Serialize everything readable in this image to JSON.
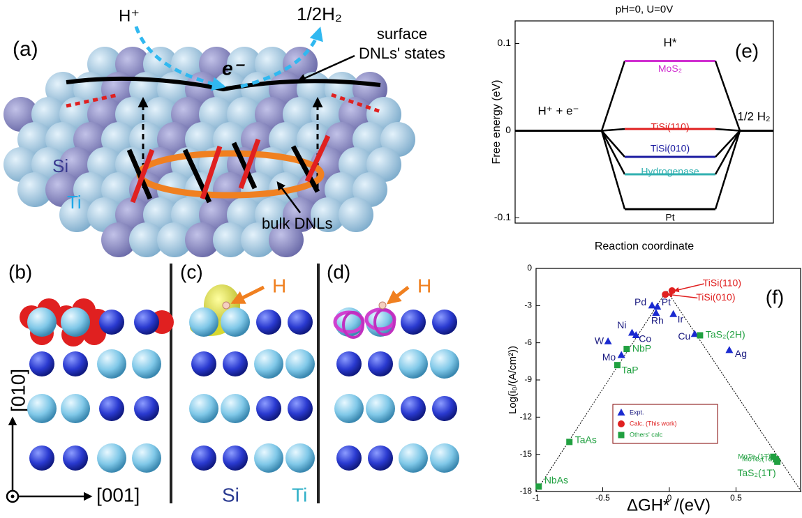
{
  "panel_a": {
    "label": "(a)",
    "h_plus": "H⁺",
    "half_h2": "1/2H₂",
    "electron": "e⁻",
    "surface_label": [
      "surface",
      "DNLs' states"
    ],
    "si": "Si",
    "ti": "Ti",
    "bulk_label": "bulk DNLs"
  },
  "panel_b": {
    "label": "(b)"
  },
  "panel_c": {
    "label": "(c)",
    "h": "H"
  },
  "panel_d": {
    "label": "(d)",
    "h": "H"
  },
  "axes_legend": {
    "y_dir": "[010]",
    "x_dir": "[001]",
    "si": "Si",
    "ti": "Ti"
  },
  "chart_data": [
    {
      "type": "energy_diagram",
      "label": "(e)",
      "title": "pH=0, U=0V",
      "ylabel": "Free energy (eV)",
      "xlabel": "Reaction coordinate",
      "ylim": [
        -0.106,
        0.126
      ],
      "yticks": [
        0.1,
        0,
        -0.1
      ],
      "stages": [
        "H⁺ + e⁻",
        "H*",
        "1/2 H₂"
      ],
      "series": [
        {
          "name": "MoS₂",
          "color": "#d030d0",
          "values": [
            0,
            0.08,
            0
          ]
        },
        {
          "name": "TiSi(110)",
          "color": "#e02020",
          "values": [
            0,
            0.002,
            0
          ]
        },
        {
          "name": "TiSi(010)",
          "color": "#1a1aa0",
          "values": [
            0,
            -0.03,
            0
          ]
        },
        {
          "name": "Hydrogenase",
          "color": "#30b0b0",
          "values": [
            0,
            -0.05,
            0
          ]
        },
        {
          "name": "Pt",
          "color": "#000000",
          "values": [
            0,
            -0.09,
            0
          ]
        }
      ]
    },
    {
      "type": "scatter",
      "label": "(f)",
      "xlabel": "ΔGH* /(eV)",
      "ylabel": "Log(i₀/(A/cm²))",
      "xlim": [
        -1,
        0.99
      ],
      "ylim": [
        -18,
        0
      ],
      "xticks": [
        -1,
        -0.5,
        0,
        0.5
      ],
      "yticks": [
        0,
        -3,
        -6,
        -9,
        -12,
        -15,
        -18
      ],
      "fit_line": {
        "x": [
          -1,
          -0.02,
          0.99
        ],
        "y": [
          -18,
          -1.8,
          -18
        ]
      },
      "series": [
        {
          "name": "Expt.",
          "color": "#1a2ad0",
          "marker": "triangle",
          "points": [
            {
              "label": "Pd",
              "x": -0.13,
              "y": -3.0
            },
            {
              "label": "Pt",
              "x": -0.09,
              "y": -3.1
            },
            {
              "label": "Rh",
              "x": -0.1,
              "y": -3.6
            },
            {
              "label": "Ir",
              "x": 0.03,
              "y": -3.7
            },
            {
              "label": "Ni",
              "x": -0.28,
              "y": -5.2
            },
            {
              "label": "Co",
              "x": -0.25,
              "y": -5.4
            },
            {
              "label": "W",
              "x": -0.46,
              "y": -5.9
            },
            {
              "label": "Mo",
              "x": -0.36,
              "y": -7.0
            },
            {
              "label": "Cu",
              "x": 0.19,
              "y": -5.3
            },
            {
              "label": "Ag",
              "x": 0.45,
              "y": -6.6
            }
          ]
        },
        {
          "name": "Calc. (This work)",
          "color": "#e02020",
          "marker": "circle",
          "points": [
            {
              "label": "TiSi(110)",
              "x": 0.02,
              "y": -1.8
            },
            {
              "label": "TiSi(010)",
              "x": -0.03,
              "y": -2.1
            }
          ]
        },
        {
          "name": "Others' calc",
          "color": "#20a040",
          "marker": "square",
          "points": [
            {
              "label": "TaS₂(2H)",
              "x": 0.23,
              "y": -5.4
            },
            {
              "label": "NbP",
              "x": -0.32,
              "y": -6.5
            },
            {
              "label": "TaP",
              "x": -0.39,
              "y": -7.8
            },
            {
              "label": "TaAs",
              "x": -0.75,
              "y": -14.0
            },
            {
              "label": "NbAs",
              "x": -0.98,
              "y": -17.6
            },
            {
              "label": "MoTe₂(1T)",
              "x": 0.78,
              "y": -15.2
            },
            {
              "label": "MoTe₂(Td)",
              "x": 0.8,
              "y": -15.4
            },
            {
              "label": "TaS₂(1T)",
              "x": 0.81,
              "y": -15.6
            }
          ]
        }
      ]
    }
  ]
}
